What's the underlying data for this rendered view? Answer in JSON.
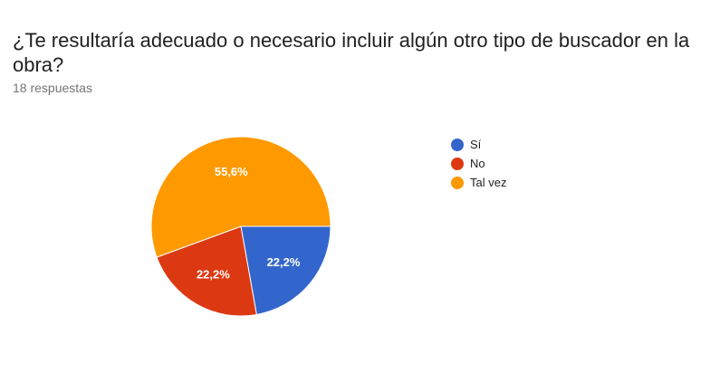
{
  "question": {
    "title": "¿Te resultaría adecuado o necesario incluir algún otro tipo de buscador en la obra?",
    "responses": "18 respuestas"
  },
  "chart_data": {
    "type": "pie",
    "categories": [
      "Sí",
      "No",
      "Tal vez"
    ],
    "values": [
      22.2,
      22.2,
      55.6
    ],
    "labels": [
      "22,2%",
      "22,2%",
      "55,6%"
    ],
    "colors": [
      "#3366cc",
      "#dc3912",
      "#ff9900"
    ],
    "legend_position": "right"
  }
}
